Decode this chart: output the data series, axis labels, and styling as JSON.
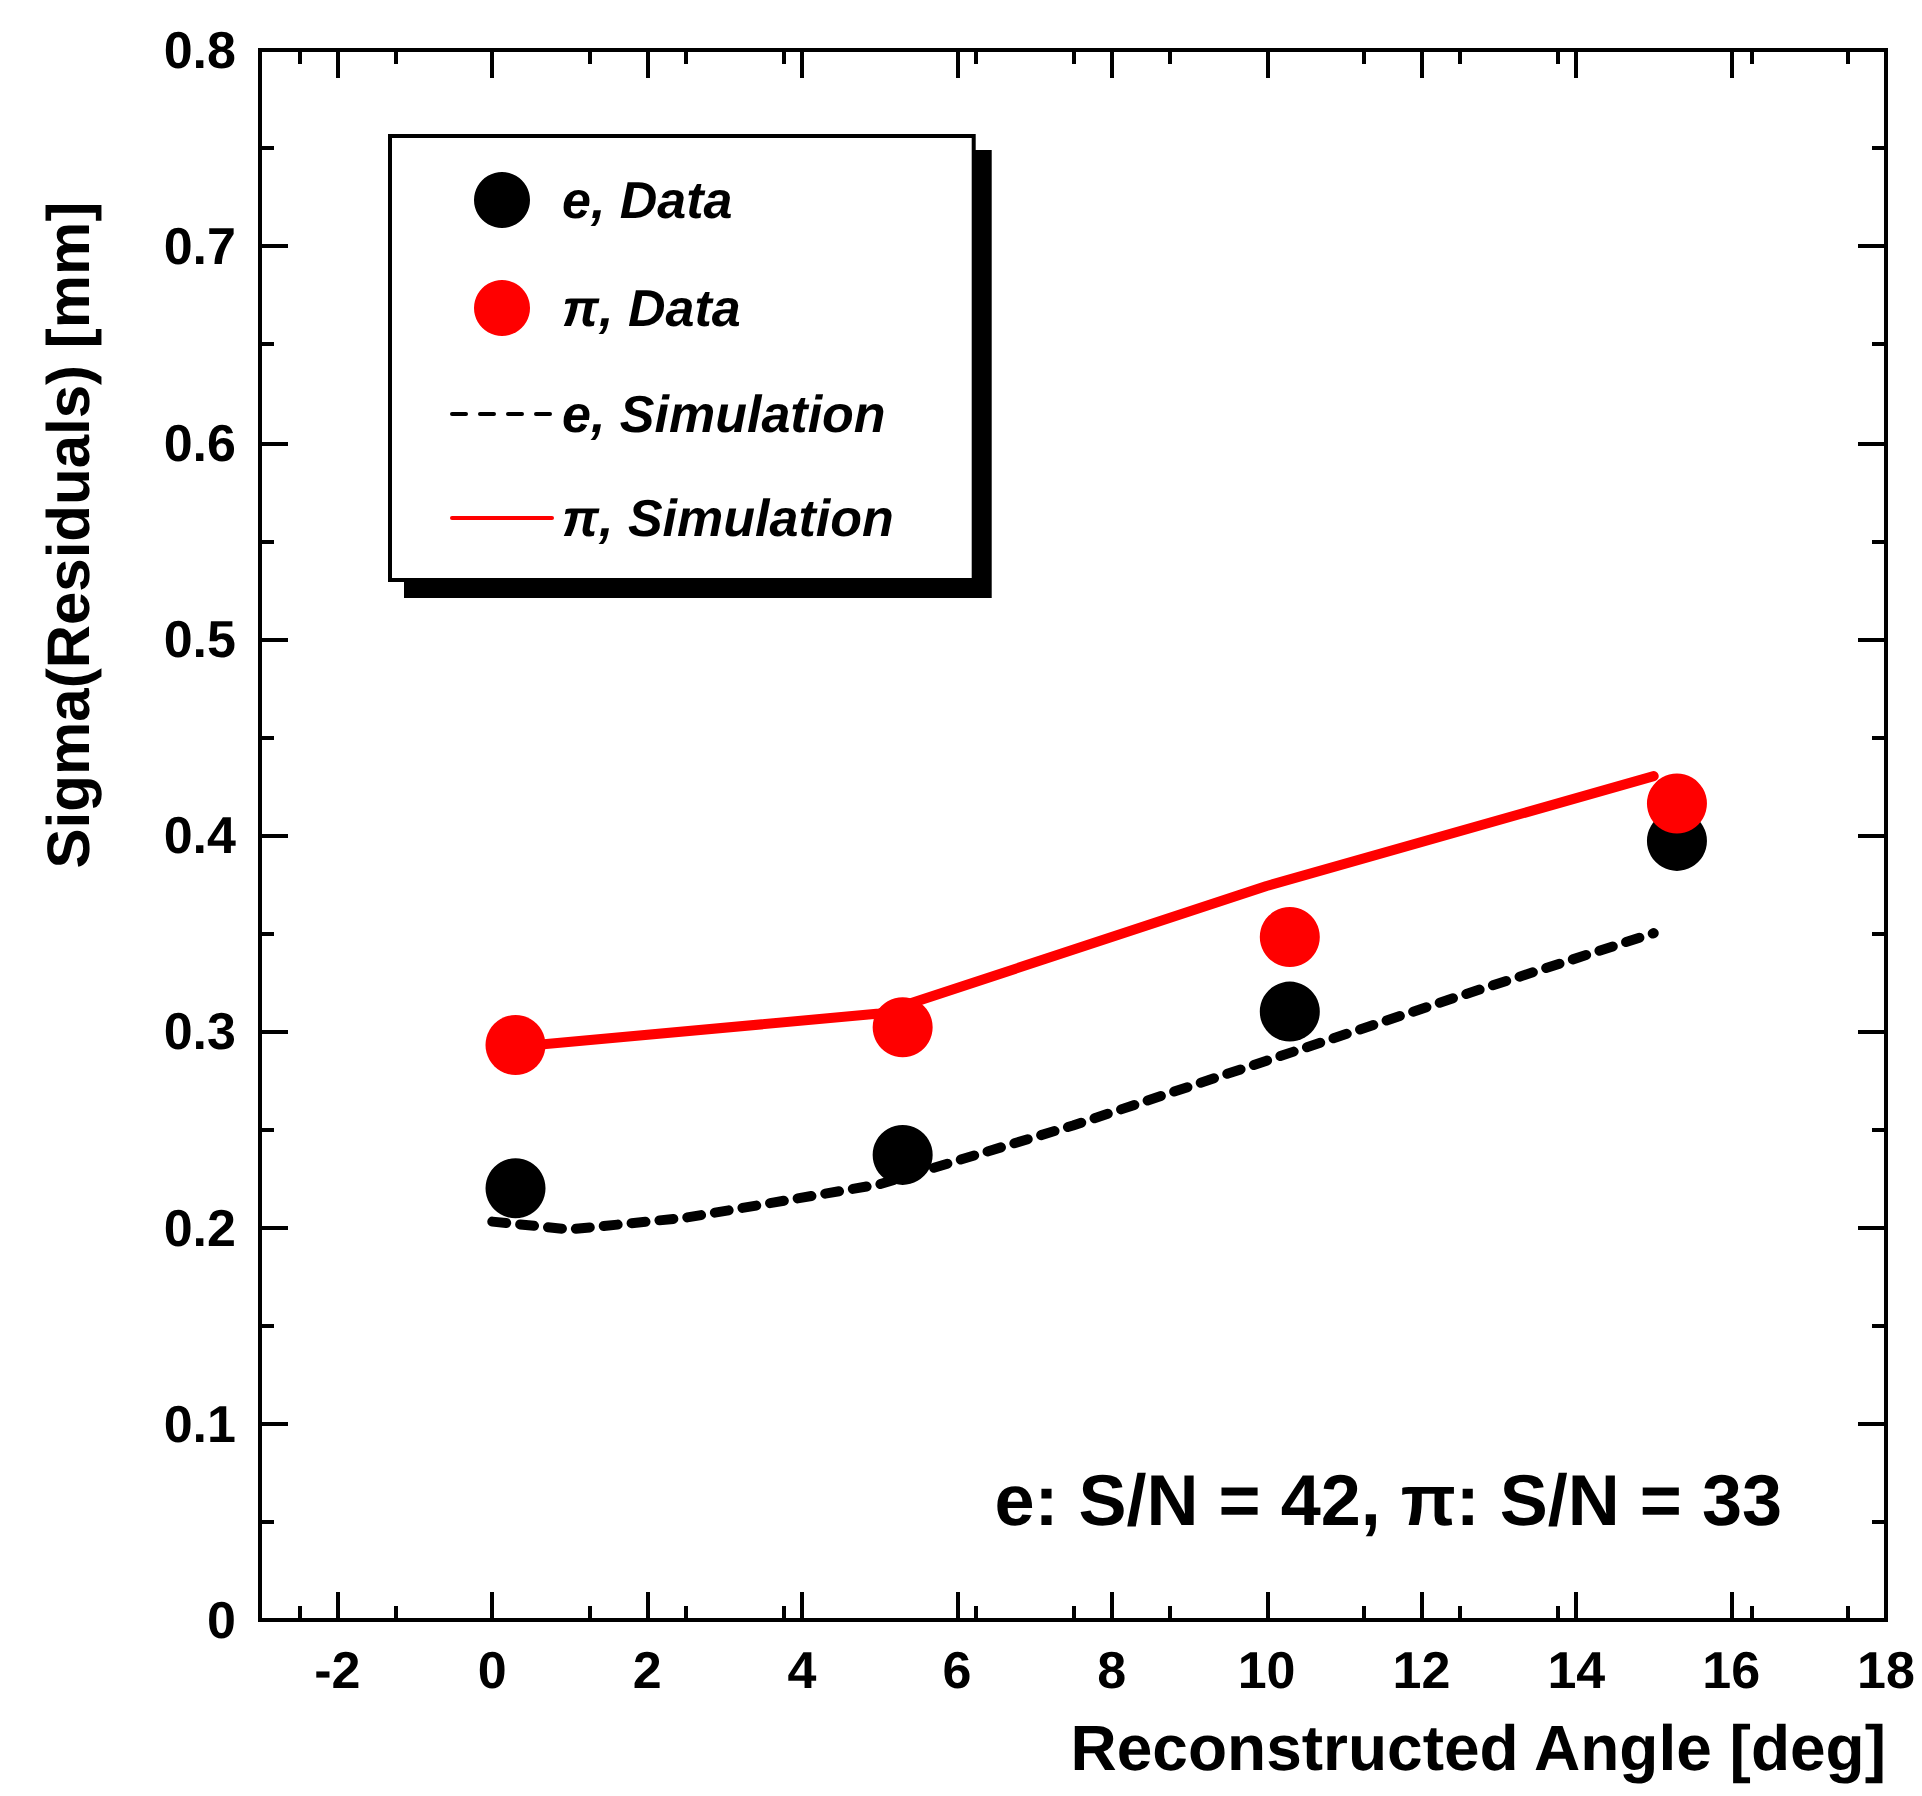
{
  "chart_data": {
    "type": "scatter",
    "xlabel": "Reconstructed Angle [deg]",
    "ylabel": "Sigma(Residuals) [mm]",
    "xlim": [
      -3,
      18
    ],
    "xticks": [
      -2,
      0,
      2,
      4,
      6,
      8,
      10,
      12,
      14,
      16,
      18
    ],
    "ylim": [
      0,
      0.8
    ],
    "yticks": [
      0,
      0.1,
      0.2,
      0.3,
      0.4,
      0.5,
      0.6,
      0.7,
      0.8
    ],
    "grid": false,
    "legend": "top left",
    "annotations": [
      "e: S/N = 42, π: S/N = 33"
    ],
    "series": [
      {
        "name": "e, Data",
        "marker": "circle",
        "color": "#000000",
        "x": [
          0.3,
          5.3,
          10.3,
          15.3
        ],
        "values": [
          0.22,
          0.237,
          0.31,
          0.397
        ]
      },
      {
        "name": "π, Data",
        "marker": "circle",
        "color": "#ff0000",
        "x": [
          0.3,
          5.3,
          10.3,
          15.3
        ],
        "values": [
          0.293,
          0.302,
          0.348,
          0.416
        ]
      },
      {
        "name": "e, Simulation",
        "type": "line",
        "line_style": "dashed",
        "marker": "none",
        "color": "#000000",
        "x": [
          0,
          1,
          2.5,
          5,
          7.5,
          10,
          12.5,
          15
        ],
        "values": [
          0.203,
          0.199,
          0.205,
          0.222,
          0.252,
          0.285,
          0.318,
          0.35
        ]
      },
      {
        "name": "π, Simulation",
        "type": "line",
        "line_style": "solid",
        "marker": "none",
        "color": "#ff0000",
        "x": [
          0,
          5,
          10,
          15
        ],
        "values": [
          0.291,
          0.309,
          0.374,
          0.43
        ]
      }
    ]
  }
}
